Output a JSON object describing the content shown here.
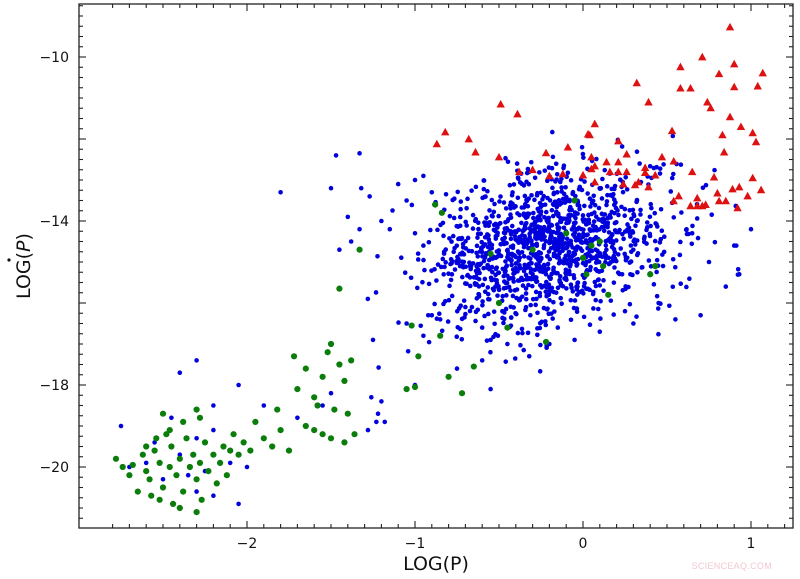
{
  "chart_data": {
    "type": "scatter",
    "title": "",
    "xlabel": "LOG(P)",
    "ylabel": "LOG(Ṗ)",
    "xlim": [
      -2.9,
      1.25
    ],
    "ylim": [
      -21.5,
      -8.6
    ],
    "xticks": [
      -2,
      -1,
      0,
      1
    ],
    "xtick_labels": [
      "−2",
      "−1",
      "0",
      "1"
    ],
    "yticks": [
      -10,
      -14,
      -18,
      -20
    ],
    "ytick_labels": [
      "−10",
      "−14",
      "−18",
      "−20"
    ],
    "x_minor_step": 0.1,
    "y_minor_step": 0.25,
    "grid": false,
    "legend": null,
    "series": [
      {
        "name": "blue",
        "marker": "circle",
        "color": "#0000dd",
        "size": 2.3,
        "core": {
          "cx": -0.2,
          "cy": -14.65,
          "sx": 0.36,
          "sy": 0.95,
          "rho": 0.25,
          "n": 1300,
          "seed": 7
        },
        "points": [
          [
            -1.8,
            -13.3
          ],
          [
            -1.47,
            -12.4
          ],
          [
            -1.33,
            -12.35
          ],
          [
            -1.5,
            -13.2
          ],
          [
            -1.32,
            -13.2
          ],
          [
            -1.27,
            -13.4
          ],
          [
            -1.45,
            -14.7
          ],
          [
            -1.1,
            -13.1
          ],
          [
            -1.05,
            -13.5
          ],
          [
            -1.0,
            -13.0
          ],
          [
            -0.95,
            -12.9
          ],
          [
            -0.9,
            -13.3
          ],
          [
            -1.15,
            -14.2
          ],
          [
            -1.0,
            -14.3
          ],
          [
            -0.95,
            -14.6
          ],
          [
            -1.2,
            -14.0
          ],
          [
            -1.4,
            -13.9
          ],
          [
            -1.33,
            -14.2
          ],
          [
            -1.38,
            -14.5
          ],
          [
            -1.25,
            -16.9
          ],
          [
            -1.05,
            -16.5
          ],
          [
            -0.9,
            -16.3
          ],
          [
            -0.95,
            -16.8
          ],
          [
            -0.85,
            -16.4
          ],
          [
            -0.7,
            -16.1
          ],
          [
            -0.6,
            -16.6
          ],
          [
            -0.55,
            -16.9
          ],
          [
            -0.48,
            -16.2
          ],
          [
            -0.45,
            -17.0
          ],
          [
            -0.32,
            -17.3
          ],
          [
            -0.2,
            -17.0
          ],
          [
            -0.15,
            -16.6
          ],
          [
            -0.05,
            -16.9
          ],
          [
            0.1,
            -16.7
          ],
          [
            0.25,
            -16.2
          ],
          [
            0.3,
            -16.5
          ],
          [
            0.45,
            -16.0
          ],
          [
            0.55,
            -16.4
          ],
          [
            0.7,
            -16.3
          ],
          [
            0.93,
            -15.3
          ],
          [
            0.85,
            -15.6
          ],
          [
            0.75,
            -15.0
          ],
          [
            0.65,
            -14.3
          ],
          [
            0.9,
            -14.6
          ],
          [
            1.0,
            -14.2
          ],
          [
            -0.55,
            -18.1
          ],
          [
            -0.6,
            -17.4
          ],
          [
            -0.75,
            -17.6
          ],
          [
            -1.0,
            -18.0
          ],
          [
            -1.2,
            -18.4
          ],
          [
            -1.22,
            -18.7
          ],
          [
            -1.23,
            -18.9
          ],
          [
            -1.26,
            -18.3
          ],
          [
            -1.28,
            -19.1
          ],
          [
            -1.18,
            -18.9
          ],
          [
            -1.5,
            -18.2
          ],
          [
            -1.55,
            -18.5
          ],
          [
            -1.7,
            -18.8
          ],
          [
            -1.9,
            -18.5
          ],
          [
            -2.05,
            -18.0
          ],
          [
            -2.2,
            -18.5
          ],
          [
            -2.3,
            -17.4
          ],
          [
            -2.4,
            -17.7
          ],
          [
            -2.45,
            -18.8
          ],
          [
            -2.3,
            -19.3
          ],
          [
            -2.2,
            -19.1
          ],
          [
            -2.55,
            -19.4
          ],
          [
            -2.75,
            -19.0
          ],
          [
            -2.6,
            -19.9
          ],
          [
            -2.4,
            -19.7
          ],
          [
            -2.35,
            -20.2
          ],
          [
            -2.25,
            -20.1
          ],
          [
            -2.3,
            -20.6
          ],
          [
            -2.5,
            -20.3
          ],
          [
            -2.7,
            -20.0
          ],
          [
            -2.1,
            -19.9
          ],
          [
            -2.0,
            -20.0
          ],
          [
            -2.05,
            -20.9
          ],
          [
            -2.2,
            -20.7
          ]
        ]
      },
      {
        "name": "green",
        "marker": "circle",
        "color": "#0a7d0a",
        "size": 3.1,
        "points": [
          [
            -2.78,
            -19.8
          ],
          [
            -2.74,
            -20.0
          ],
          [
            -2.7,
            -20.2
          ],
          [
            -2.68,
            -19.95
          ],
          [
            -2.62,
            -19.7
          ],
          [
            -2.6,
            -20.1
          ],
          [
            -2.58,
            -20.3
          ],
          [
            -2.55,
            -19.6
          ],
          [
            -2.52,
            -19.9
          ],
          [
            -2.5,
            -20.5
          ],
          [
            -2.48,
            -19.2
          ],
          [
            -2.46,
            -20.0
          ],
          [
            -2.45,
            -19.5
          ],
          [
            -2.42,
            -20.2
          ],
          [
            -2.4,
            -19.8
          ],
          [
            -2.38,
            -20.6
          ],
          [
            -2.36,
            -19.3
          ],
          [
            -2.34,
            -20.0
          ],
          [
            -2.32,
            -19.7
          ],
          [
            -2.3,
            -20.3
          ],
          [
            -2.28,
            -19.9
          ],
          [
            -2.27,
            -20.8
          ],
          [
            -2.25,
            -19.4
          ],
          [
            -2.23,
            -20.1
          ],
          [
            -2.2,
            -19.7
          ],
          [
            -2.18,
            -20.4
          ],
          [
            -2.16,
            -19.9
          ],
          [
            -2.14,
            -19.5
          ],
          [
            -2.12,
            -20.2
          ],
          [
            -2.1,
            -19.6
          ],
          [
            -2.08,
            -19.2
          ],
          [
            -2.05,
            -19.7
          ],
          [
            -2.02,
            -19.4
          ],
          [
            -1.98,
            -19.6
          ],
          [
            -1.95,
            -18.9
          ],
          [
            -1.9,
            -19.3
          ],
          [
            -1.85,
            -19.5
          ],
          [
            -1.82,
            -18.6
          ],
          [
            -1.8,
            -19.1
          ],
          [
            -2.65,
            -20.6
          ],
          [
            -2.57,
            -20.7
          ],
          [
            -2.52,
            -20.8
          ],
          [
            -2.44,
            -20.9
          ],
          [
            -2.4,
            -21.0
          ],
          [
            -2.3,
            -21.1
          ],
          [
            -2.6,
            -19.5
          ],
          [
            -2.54,
            -19.3
          ],
          [
            -2.46,
            -19.1
          ],
          [
            -2.5,
            -18.7
          ],
          [
            -2.38,
            -18.9
          ],
          [
            -2.3,
            -18.6
          ],
          [
            -2.28,
            -18.8
          ],
          [
            -1.72,
            -17.3
          ],
          [
            -1.7,
            -18.1
          ],
          [
            -1.65,
            -17.6
          ],
          [
            -1.6,
            -18.3
          ],
          [
            -1.58,
            -18.5
          ],
          [
            -1.55,
            -17.8
          ],
          [
            -1.52,
            -17.2
          ],
          [
            -1.5,
            -17.0
          ],
          [
            -1.48,
            -18.6
          ],
          [
            -1.45,
            -17.5
          ],
          [
            -1.42,
            -17.9
          ],
          [
            -1.4,
            -18.7
          ],
          [
            -1.38,
            -17.4
          ],
          [
            -1.36,
            -19.2
          ],
          [
            -1.5,
            -19.3
          ],
          [
            -1.6,
            -19.1
          ],
          [
            -1.65,
            -19.0
          ],
          [
            -1.55,
            -19.2
          ],
          [
            -1.75,
            -19.6
          ],
          [
            -1.42,
            -19.4
          ],
          [
            -1.33,
            -14.7
          ],
          [
            -1.45,
            -15.65
          ],
          [
            -1.02,
            -16.55
          ],
          [
            -0.98,
            -17.3
          ],
          [
            -1.05,
            -18.1
          ],
          [
            -1.0,
            -18.05
          ],
          [
            -0.8,
            -17.8
          ],
          [
            -0.72,
            -18.2
          ],
          [
            -0.65,
            -17.55
          ],
          [
            -0.85,
            -16.8
          ],
          [
            -0.45,
            -16.6
          ],
          [
            -0.22,
            -16.95
          ],
          [
            -0.88,
            -13.6
          ],
          [
            -0.84,
            -13.8
          ],
          [
            -0.05,
            -13.5
          ],
          [
            -0.55,
            -14.8
          ],
          [
            -0.1,
            -14.3
          ],
          [
            0.1,
            -14.5
          ],
          [
            0.05,
            -14.6
          ],
          [
            0.0,
            -14.9
          ],
          [
            0.12,
            -15.1
          ],
          [
            -0.3,
            -14.7
          ],
          [
            0.15,
            -15.8
          ],
          [
            0.4,
            -15.3
          ],
          [
            0.43,
            -15.1
          ],
          [
            -0.5,
            -16.0
          ],
          [
            0.02,
            -15.3
          ]
        ]
      },
      {
        "name": "red",
        "marker": "triangle",
        "color": "#dd1111",
        "size": 4.2,
        "points": [
          [
            0.875,
            -9.27
          ],
          [
            0.71,
            -10.0
          ],
          [
            0.58,
            -10.24
          ],
          [
            0.9,
            -10.17
          ],
          [
            0.81,
            -10.41
          ],
          [
            1.07,
            -10.39
          ],
          [
            0.58,
            -10.76
          ],
          [
            0.64,
            -10.76
          ],
          [
            0.9,
            -10.73
          ],
          [
            1.04,
            -10.71
          ],
          [
            0.32,
            -10.63
          ],
          [
            0.39,
            -11.1
          ],
          [
            0.74,
            -11.1
          ],
          [
            0.76,
            -11.24
          ],
          [
            -0.49,
            -11.15
          ],
          [
            -0.39,
            -11.39
          ],
          [
            0.875,
            -11.46
          ],
          [
            0.94,
            -11.7
          ],
          [
            0.07,
            -11.63
          ],
          [
            0.03,
            -11.88
          ],
          [
            -0.82,
            -11.83
          ],
          [
            -0.87,
            -12.12
          ],
          [
            -0.68,
            -12.0
          ],
          [
            -0.64,
            -12.32
          ],
          [
            -0.5,
            -12.44
          ],
          [
            -0.22,
            -12.34
          ],
          [
            -0.09,
            -12.2
          ],
          [
            0.21,
            -12.05
          ],
          [
            0.53,
            -11.8
          ],
          [
            0.83,
            -11.9
          ],
          [
            1.03,
            -12.07
          ],
          [
            0.84,
            -12.32
          ],
          [
            0.04,
            -11.9
          ],
          [
            0.26,
            -12.37
          ],
          [
            0.05,
            -12.44
          ],
          [
            0.14,
            -12.56
          ],
          [
            0.21,
            -12.56
          ],
          [
            0.07,
            -12.66
          ],
          [
            0.05,
            -12.73
          ],
          [
            0.16,
            -12.8
          ],
          [
            0.21,
            -12.8
          ],
          [
            0.26,
            -12.8
          ],
          [
            0.37,
            -12.7
          ],
          [
            0.37,
            -12.82
          ],
          [
            0.43,
            -12.88
          ],
          [
            0.47,
            -12.44
          ],
          [
            0.54,
            -12.54
          ],
          [
            0.65,
            -12.8
          ],
          [
            0.78,
            -12.93
          ],
          [
            1.01,
            -12.95
          ],
          [
            0.07,
            -13.05
          ],
          [
            0.24,
            -13.1
          ],
          [
            0.33,
            -13.05
          ],
          [
            0.31,
            -13.12
          ],
          [
            0.39,
            -13.17
          ],
          [
            0.0,
            -12.88
          ],
          [
            0.57,
            -13.39
          ],
          [
            0.68,
            -13.44
          ],
          [
            0.54,
            -13.51
          ],
          [
            0.64,
            -13.63
          ],
          [
            0.68,
            -13.63
          ],
          [
            0.71,
            -13.63
          ],
          [
            0.73,
            -13.6
          ],
          [
            0.8,
            -13.32
          ],
          [
            0.89,
            -13.22
          ],
          [
            0.93,
            -13.17
          ],
          [
            1.06,
            -13.24
          ],
          [
            0.98,
            -13.39
          ],
          [
            0.81,
            -13.51
          ],
          [
            0.85,
            -13.51
          ],
          [
            0.92,
            -13.68
          ],
          [
            1.01,
            -11.85
          ],
          [
            -0.38,
            -12.8
          ],
          [
            -0.3,
            -12.75
          ],
          [
            -0.2,
            -12.9
          ],
          [
            -0.12,
            -12.85
          ]
        ]
      }
    ]
  },
  "watermark": "SCIENCEAQ.COM"
}
